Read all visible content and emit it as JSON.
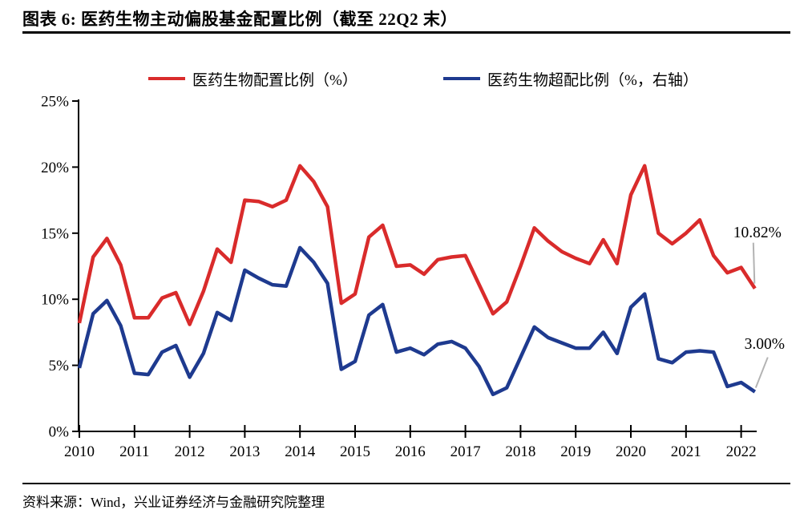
{
  "header": {
    "title": "图表 6: 医药生物主动偏股基金配置比例（截至 22Q2 末）"
  },
  "footer": {
    "source": "资料来源：Wind，兴业证券经济与金融研究院整理"
  },
  "chart_data": {
    "type": "line",
    "title": "医药生物主动偏股基金配置比例（截至 22Q2 末）",
    "frequency": "quarterly",
    "x_start": "2010Q1",
    "x_end": "2022Q2",
    "x_tick_labels": [
      "2010",
      "2011",
      "2012",
      "2013",
      "2014",
      "2015",
      "2016",
      "2017",
      "2018",
      "2019",
      "2020",
      "2021",
      "2022"
    ],
    "y_tick_labels": [
      "0%",
      "5%",
      "10%",
      "15%",
      "20%",
      "25%"
    ],
    "ylim": [
      0,
      25
    ],
    "grid": false,
    "legend_position": "top",
    "axis_color": "#000000",
    "leader_color": "#b3b3b3",
    "series": [
      {
        "name": "医药生物配置比例（%）",
        "color": "#d92b2b",
        "end_label": "10.82%",
        "values": [
          8.2,
          13.2,
          14.6,
          12.6,
          8.6,
          8.6,
          10.1,
          10.5,
          8.1,
          10.6,
          13.8,
          12.8,
          17.5,
          17.4,
          17.0,
          17.5,
          20.1,
          18.9,
          17.0,
          9.7,
          10.4,
          14.7,
          15.6,
          12.5,
          12.6,
          11.9,
          13.0,
          13.2,
          13.3,
          11.1,
          8.9,
          9.8,
          12.5,
          15.4,
          14.4,
          13.6,
          13.1,
          12.7,
          14.5,
          12.7,
          17.9,
          20.1,
          15.0,
          14.2,
          15.0,
          16.0,
          13.3,
          12.0,
          12.4,
          10.82
        ]
      },
      {
        "name": "医药生物超配比例（%，右轴）",
        "color": "#1e3a8f",
        "end_label": "3.00%",
        "values": [
          4.8,
          8.9,
          9.9,
          8.0,
          4.4,
          4.3,
          6.0,
          6.5,
          4.1,
          5.9,
          9.0,
          8.4,
          12.2,
          11.6,
          11.1,
          11.0,
          13.9,
          12.8,
          11.2,
          4.7,
          5.3,
          8.8,
          9.6,
          6.0,
          6.3,
          5.8,
          6.6,
          6.8,
          6.3,
          4.9,
          2.8,
          3.3,
          5.6,
          7.9,
          7.1,
          6.7,
          6.3,
          6.3,
          7.5,
          5.9,
          9.4,
          10.4,
          5.5,
          5.2,
          6.0,
          6.1,
          6.0,
          3.4,
          3.7,
          3.0
        ]
      }
    ]
  }
}
